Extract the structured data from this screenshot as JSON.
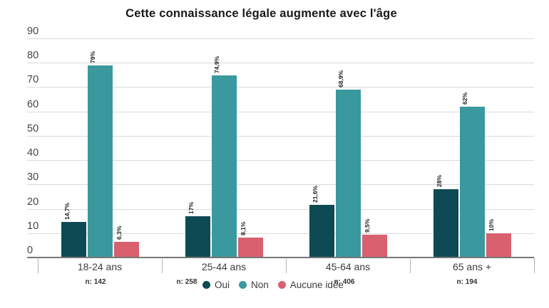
{
  "chart_data": {
    "type": "bar",
    "title": "Cette connaissance légale augmente avec l'âge",
    "categories": [
      "18-24 ans",
      "25-44 ans",
      "45-64 ans",
      "65 ans +"
    ],
    "sample_sizes": [
      "n: 142",
      "n: 258",
      "n: 406",
      "n: 194"
    ],
    "series": [
      {
        "name": "Oui",
        "color": "#0d4a53",
        "values": [
          14.7,
          17.0,
          21.6,
          28.0
        ],
        "labels": [
          "14,7%",
          "17%",
          "21,6%",
          "28%"
        ]
      },
      {
        "name": "Non",
        "color": "#39999f",
        "values": [
          79.0,
          74.9,
          68.9,
          62.0
        ],
        "labels": [
          "79%",
          "74,9%",
          "68,9%",
          "62%"
        ]
      },
      {
        "name": "Aucune idée",
        "color": "#d9606f",
        "values": [
          6.3,
          8.1,
          9.5,
          10.0
        ],
        "labels": [
          "6,3%",
          "8,1%",
          "9,5%",
          "10%"
        ]
      }
    ],
    "y_ticks": [
      0,
      10,
      20,
      30,
      40,
      50,
      60,
      70,
      80,
      90
    ],
    "ylim": [
      0,
      90
    ],
    "xlabel": "",
    "ylabel": "",
    "grid": true,
    "legend_position": "bottom-center",
    "value_label_format": "rotated-90"
  }
}
